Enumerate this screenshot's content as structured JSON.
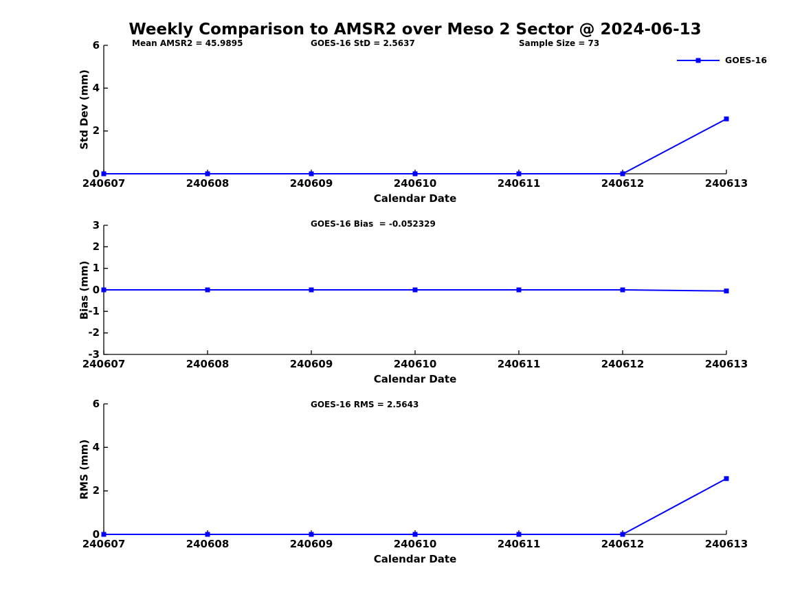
{
  "title": "Weekly Comparison to AMSR2 over Meso 2 Sector @ 2024-06-13",
  "legend": {
    "label": "GOES-16",
    "color": "#0000ff"
  },
  "colors": {
    "series_line": "#0000ff",
    "axis": "#000000",
    "text": "#000000",
    "background": "#ffffff"
  },
  "chart_data": [
    {
      "type": "line",
      "x": [
        "240607",
        "240608",
        "240609",
        "240610",
        "240611",
        "240612",
        "240613"
      ],
      "series": [
        {
          "name": "GOES-16",
          "color": "#0000ff",
          "marker": "square",
          "values": [
            0,
            0,
            0,
            0,
            0,
            0,
            2.5637
          ]
        }
      ],
      "annotations": [
        "Mean AMSR2 = 45.9895",
        "GOES-16 StD = 2.5637",
        "Sample Size = 73"
      ],
      "xlabel": "Calendar Date",
      "ylabel": "Std Dev (mm)",
      "ylim": [
        0,
        6
      ],
      "yticks": [
        6,
        4,
        2,
        0
      ],
      "grid": false,
      "legend": "GOES-16",
      "legend_position": "top-right"
    },
    {
      "type": "line",
      "x": [
        "240607",
        "240608",
        "240609",
        "240610",
        "240611",
        "240612",
        "240613"
      ],
      "series": [
        {
          "name": "GOES-16",
          "color": "#0000ff",
          "marker": "square",
          "values": [
            0,
            0,
            0,
            0,
            0,
            0,
            -0.052329
          ]
        }
      ],
      "annotations": [
        "GOES-16 Bias  = -0.052329"
      ],
      "xlabel": "Calendar Date",
      "ylabel": "Bias (mm)",
      "ylim": [
        -3,
        3
      ],
      "yticks": [
        3,
        2,
        1,
        0,
        -1,
        -2,
        -3
      ],
      "grid": false
    },
    {
      "type": "line",
      "x": [
        "240607",
        "240608",
        "240609",
        "240610",
        "240611",
        "240612",
        "240613"
      ],
      "series": [
        {
          "name": "GOES-16",
          "color": "#0000ff",
          "marker": "square",
          "values": [
            0,
            0,
            0,
            0,
            0,
            0,
            2.5643
          ]
        }
      ],
      "annotations": [
        "GOES-16 RMS = 2.5643"
      ],
      "xlabel": "Calendar Date",
      "ylabel": "RMS (mm)",
      "ylim": [
        0,
        6
      ],
      "yticks": [
        6,
        4,
        2,
        0
      ],
      "grid": false
    }
  ]
}
